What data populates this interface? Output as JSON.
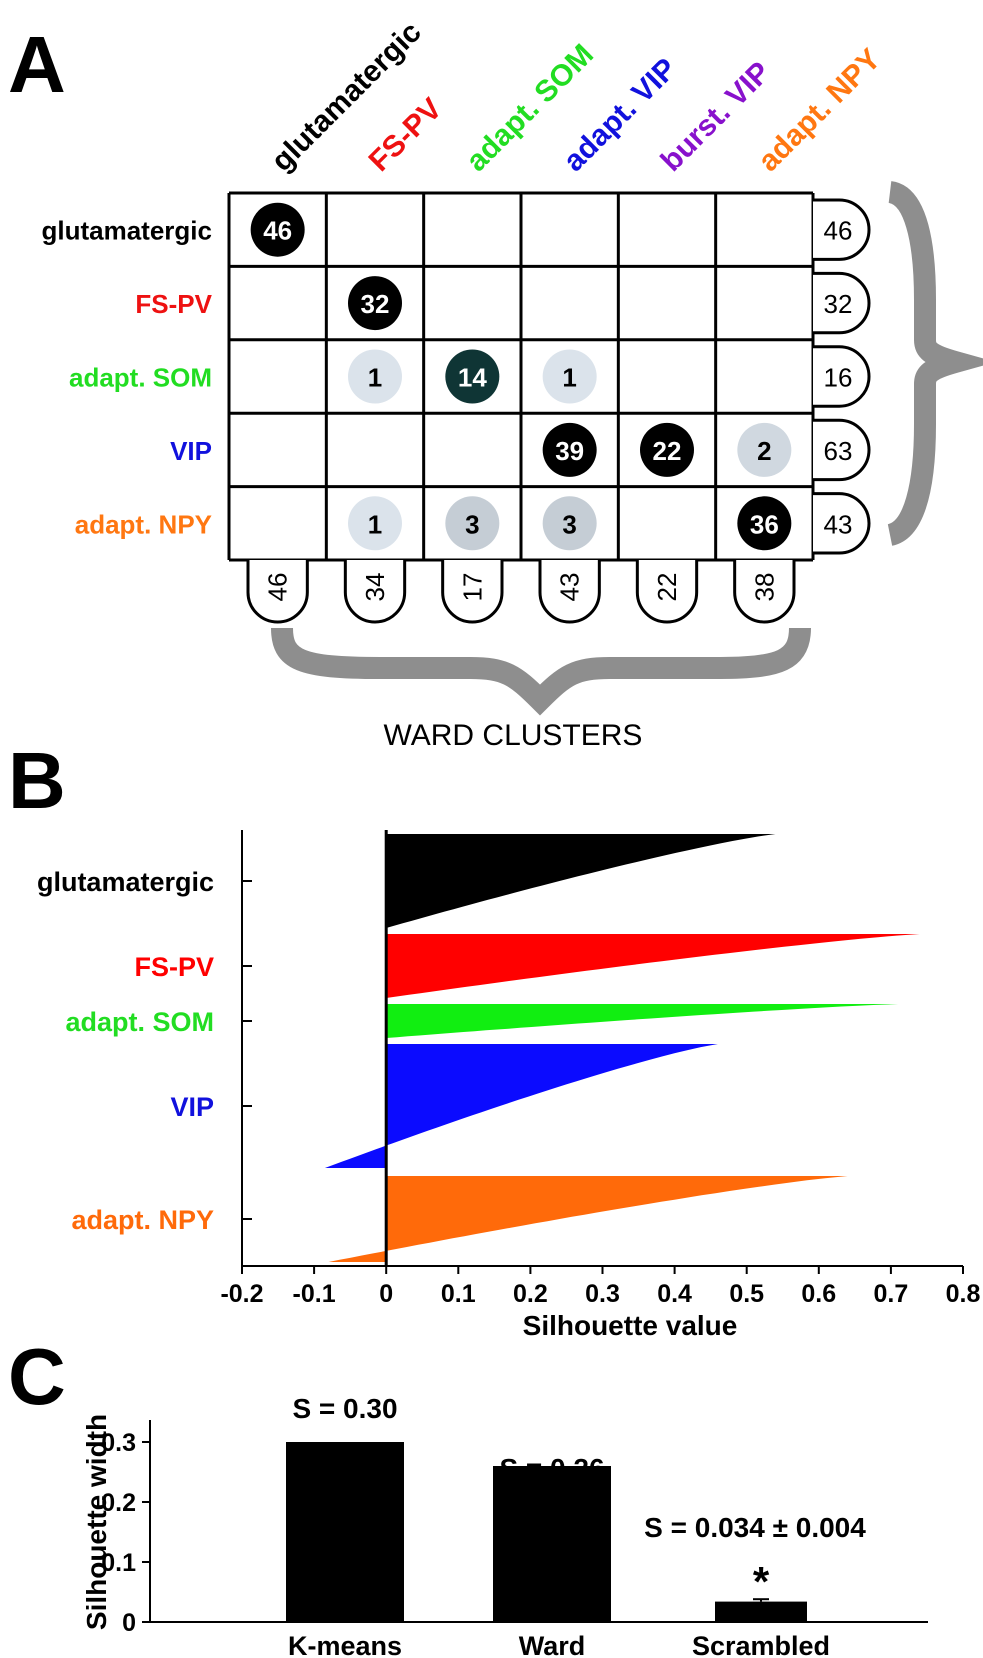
{
  "panels": {
    "a": "A",
    "b": "B",
    "c": "C"
  },
  "chart_data": [
    {
      "type": "table",
      "column_headers": [
        "glutamatergic",
        "FS-PV",
        "adapt. SOM",
        "adapt. VIP",
        "burst. VIP",
        "adapt. NPY"
      ],
      "column_colors": [
        "#000000",
        "#ee1111",
        "#22dd22",
        "#1111dd",
        "#8811cc",
        "#ff7711"
      ],
      "row_labels": [
        "glutamatergic",
        "FS-PV",
        "adapt. SOM",
        "VIP",
        "adapt. NPY"
      ],
      "row_colors": [
        "#000000",
        "#ee1111",
        "#22dd22",
        "#1111dd",
        "#ff7711"
      ],
      "cells": [
        [
          46,
          null,
          null,
          null,
          null,
          null
        ],
        [
          null,
          32,
          null,
          null,
          null,
          null
        ],
        [
          null,
          1,
          14,
          1,
          null,
          null
        ],
        [
          null,
          null,
          null,
          39,
          22,
          2
        ],
        [
          null,
          1,
          3,
          3,
          null,
          36
        ]
      ],
      "row_totals": [
        "46",
        "32",
        "16",
        "63",
        "43"
      ],
      "column_totals": [
        "46",
        "34",
        "17",
        "43",
        "22",
        "38"
      ],
      "xlabel": "WARD CLUSTERS"
    },
    {
      "type": "bar",
      "orientation": "horizontal",
      "groups": [
        {
          "name": "glutamatergic",
          "color": "#000000",
          "max": 0.54,
          "min": 0.0
        },
        {
          "name": "FS-PV",
          "color": "#ff0000",
          "max": 0.74,
          "min": 0.0
        },
        {
          "name": "adapt. SOM",
          "color": "#11ee11",
          "max": 0.71,
          "min": 0.0
        },
        {
          "name": "VIP",
          "color": "#0b0bff",
          "max": 0.46,
          "min": -0.085
        },
        {
          "name": "adapt. NPY",
          "color": "#ff6a0a",
          "max": 0.64,
          "min": -0.08
        }
      ],
      "xlabel": "Silhouette value",
      "xlim": [
        -0.2,
        0.8
      ],
      "xticks": [
        "-0.2",
        "-0.1",
        "0",
        "0.1",
        "0.2",
        "0.3",
        "0.4",
        "0.5",
        "0.6",
        "0.7",
        "0.8"
      ]
    },
    {
      "type": "bar",
      "categories": [
        "K-means",
        "Ward",
        "Scrambled"
      ],
      "values": [
        0.3,
        0.26,
        0.034
      ],
      "error": [
        0,
        0,
        0.004
      ],
      "annotations": [
        "S = 0.30",
        "S = 0.26",
        "S = 0.034 ± 0.004"
      ],
      "significance": "*",
      "ylabel": "Silhouette width",
      "yticks": [
        "0",
        "0.1",
        "0.2",
        "0.3"
      ],
      "ylim": [
        0,
        0.32
      ]
    }
  ]
}
